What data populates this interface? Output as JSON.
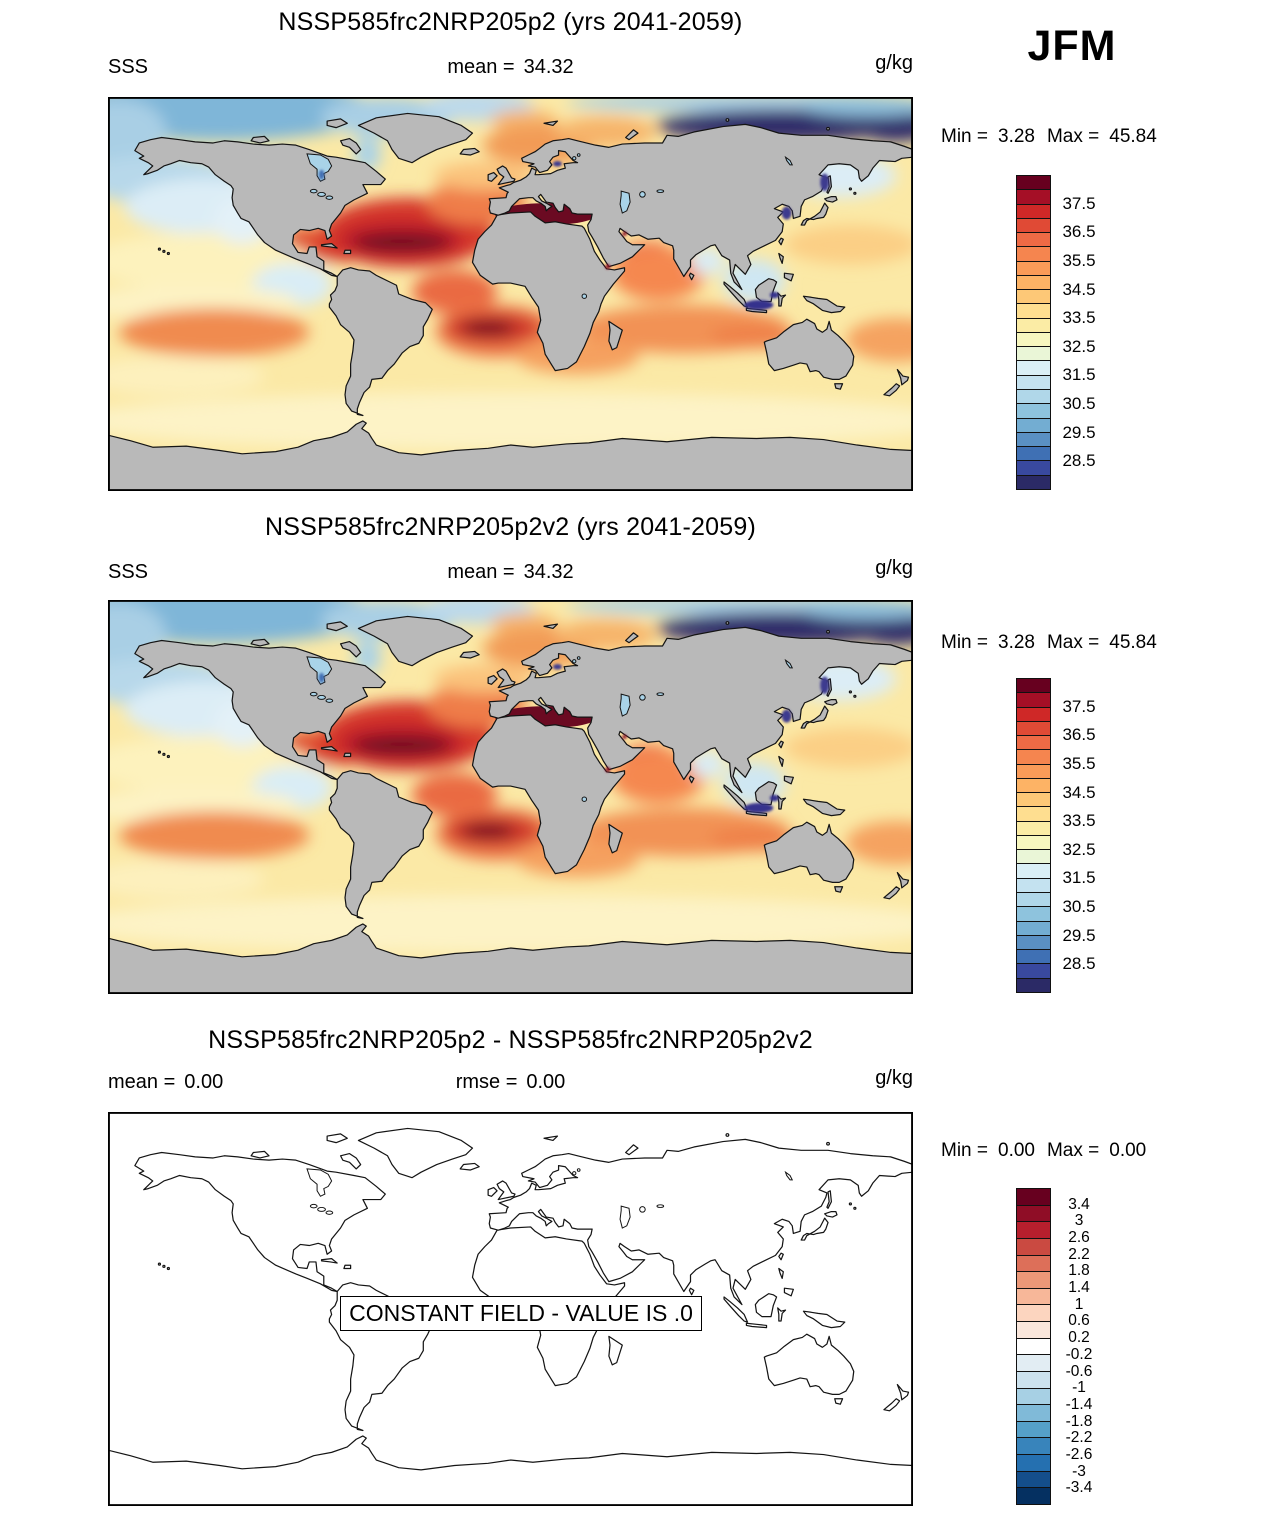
{
  "season_label": "JFM",
  "colors": {
    "land": "#b9b9b9",
    "coastline": "#141414",
    "ocean_base": "#fbe9a6",
    "inland_water": "#a9d3e8",
    "mediterranean": "#6b0a22",
    "outline_fill": "#ffffff",
    "frame": "#000000"
  },
  "panels": [
    {
      "title": "NSSP585frc2NRP205p2 (yrs 2041-2059)",
      "field_label": "SSS",
      "mean_label": "mean =",
      "mean_value": "34.32",
      "units": "g/kg",
      "min_label": "Min =",
      "min_value": "3.28",
      "max_label": "Max =",
      "max_value": "45.84",
      "colorbar": {
        "cell_colors": [
          "#67001f",
          "#a50f26",
          "#cf2827",
          "#e04a35",
          "#ee6a45",
          "#f5854f",
          "#fa9b58",
          "#fdb365",
          "#fdc877",
          "#fede90",
          "#fbeca5",
          "#f7f7bf",
          "#eaf6d7",
          "#daeff6",
          "#c4e2f0",
          "#b0d7e9",
          "#8ec3dd",
          "#73add2",
          "#5a90c3",
          "#3f70b4",
          "#39499f",
          "#2b2a66"
        ],
        "labels": [
          "37.5",
          "36.5",
          "35.5",
          "34.5",
          "33.5",
          "32.5",
          "31.5",
          "30.5",
          "29.5",
          "28.5"
        ],
        "label_start_boundary": 2,
        "label_step": 2,
        "label_size": "normal"
      }
    },
    {
      "title": "NSSP585frc2NRP205p2v2 (yrs 2041-2059)",
      "field_label": "SSS",
      "mean_label": "mean =",
      "mean_value": "34.32",
      "units": "g/kg",
      "min_label": "Min =",
      "min_value": "3.28",
      "max_label": "Max =",
      "max_value": "45.84",
      "colorbar": {
        "cell_colors": [
          "#67001f",
          "#a50f26",
          "#cf2827",
          "#e04a35",
          "#ee6a45",
          "#f5854f",
          "#fa9b58",
          "#fdb365",
          "#fdc877",
          "#fede90",
          "#fbeca5",
          "#f7f7bf",
          "#eaf6d7",
          "#daeff6",
          "#c4e2f0",
          "#b0d7e9",
          "#8ec3dd",
          "#73add2",
          "#5a90c3",
          "#3f70b4",
          "#39499f",
          "#2b2a66"
        ],
        "labels": [
          "37.5",
          "36.5",
          "35.5",
          "34.5",
          "33.5",
          "32.5",
          "31.5",
          "30.5",
          "29.5",
          "28.5"
        ],
        "label_start_boundary": 2,
        "label_step": 2,
        "label_size": "normal"
      }
    },
    {
      "title": "NSSP585frc2NRP205p2 - NSSP585frc2NRP205p2v2",
      "mean_label": "mean =",
      "mean_value": "0.00",
      "rmse_label": "rmse =",
      "rmse_value": "0.00",
      "units": "g/kg",
      "min_label": "Min =",
      "min_value": "0.00",
      "max_label": "Max =",
      "max_value": "0.00",
      "overlay_text": "CONSTANT FIELD - VALUE IS .0",
      "colorbar": {
        "cell_colors": [
          "#67001f",
          "#8f0d26",
          "#b71f2d",
          "#ca4a41",
          "#dd6f59",
          "#ec9878",
          "#f7b799",
          "#fcd5bf",
          "#fae7dc",
          "#ffffff",
          "#e2edf3",
          "#cce2ee",
          "#a7d0e4",
          "#80bad8",
          "#55a0c9",
          "#3884bb",
          "#2570b0",
          "#144e8b",
          "#053061"
        ],
        "labels": [
          "3.4",
          "3",
          "2.6",
          "2.2",
          "1.8",
          "1.4",
          "1",
          "0.6",
          "0.2",
          "-0.2",
          "-0.6",
          "-1",
          "-1.4",
          "-1.8",
          "-2.2",
          "-2.6",
          "-3",
          "-3.4"
        ],
        "label_start_boundary": 1,
        "label_step": 1,
        "label_size": "small"
      }
    }
  ],
  "chart_data": {
    "type": "heatmap",
    "subtype": "filled-contour-world-maps",
    "season": "JFM",
    "variable": "SSS",
    "units": "g/kg",
    "panels": [
      {
        "title": "NSSP585frc2NRP205p2 (yrs 2041-2059)",
        "mean": 34.32,
        "min": 3.28,
        "max": 45.84,
        "colorbar_tick_values": [
          37.5,
          36.5,
          35.5,
          34.5,
          33.5,
          32.5,
          31.5,
          30.5,
          29.5,
          28.5
        ]
      },
      {
        "title": "NSSP585frc2NRP205p2v2 (yrs 2041-2059)",
        "mean": 34.32,
        "min": 3.28,
        "max": 45.84,
        "colorbar_tick_values": [
          37.5,
          36.5,
          35.5,
          34.5,
          33.5,
          32.5,
          31.5,
          30.5,
          29.5,
          28.5
        ]
      },
      {
        "title": "NSSP585frc2NRP205p2 - NSSP585frc2NRP205p2v2",
        "mean": 0.0,
        "rmse": 0.0,
        "min": 0.0,
        "max": 0.0,
        "constant_field_note": "CONSTANT FIELD - VALUE IS .0",
        "colorbar_tick_values": [
          3.4,
          3,
          2.6,
          2.2,
          1.8,
          1.4,
          1,
          0.6,
          0.2,
          -0.2,
          -0.6,
          -1,
          -1.4,
          -1.8,
          -2.2,
          -2.6,
          -3,
          -3.4
        ]
      }
    ],
    "legend_position": "right",
    "projection": "equirectangular (90N-90S, 180W-180E)"
  }
}
